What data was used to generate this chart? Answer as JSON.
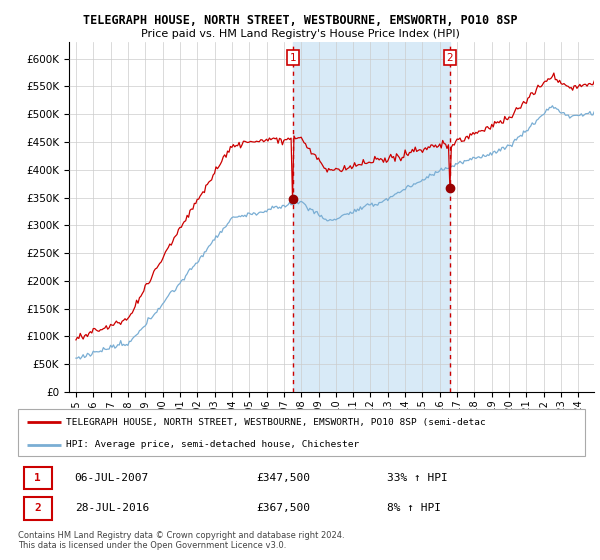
{
  "title": "TELEGRAPH HOUSE, NORTH STREET, WESTBOURNE, EMSWORTH, PO10 8SP",
  "subtitle": "Price paid vs. HM Land Registry's House Price Index (HPI)",
  "ytick_values": [
    0,
    50000,
    100000,
    150000,
    200000,
    250000,
    300000,
    350000,
    400000,
    450000,
    500000,
    550000,
    600000
  ],
  "ylim": [
    0,
    630000
  ],
  "xtick_years": [
    1995,
    1996,
    1997,
    1998,
    1999,
    2000,
    2001,
    2002,
    2003,
    2004,
    2005,
    2006,
    2007,
    2008,
    2009,
    2010,
    2011,
    2012,
    2013,
    2014,
    2015,
    2016,
    2017,
    2018,
    2019,
    2020,
    2021,
    2022,
    2023,
    2024
  ],
  "sale1_date": 2007.52,
  "sale1_price": 347500,
  "sale1_label": "1",
  "sale1_text": "06-JUL-2007",
  "sale1_amount": "£347,500",
  "sale1_pct": "33% ↑ HPI",
  "sale2_date": 2016.57,
  "sale2_price": 367500,
  "sale2_label": "2",
  "sale2_text": "28-JUL-2016",
  "sale2_amount": "£367,500",
  "sale2_pct": "8% ↑ HPI",
  "property_color": "#cc0000",
  "hpi_color": "#7aaed4",
  "sale_marker_color": "#990000",
  "vline_color": "#cc0000",
  "fill_color": "#d8eaf7",
  "grid_color": "#cccccc",
  "background_color": "#ffffff",
  "legend_property_label": "TELEGRAPH HOUSE, NORTH STREET, WESTBOURNE, EMSWORTH, PO10 8SP (semi-detac",
  "legend_hpi_label": "HPI: Average price, semi-detached house, Chichester",
  "footer": "Contains HM Land Registry data © Crown copyright and database right 2024.\nThis data is licensed under the Open Government Licence v3.0."
}
